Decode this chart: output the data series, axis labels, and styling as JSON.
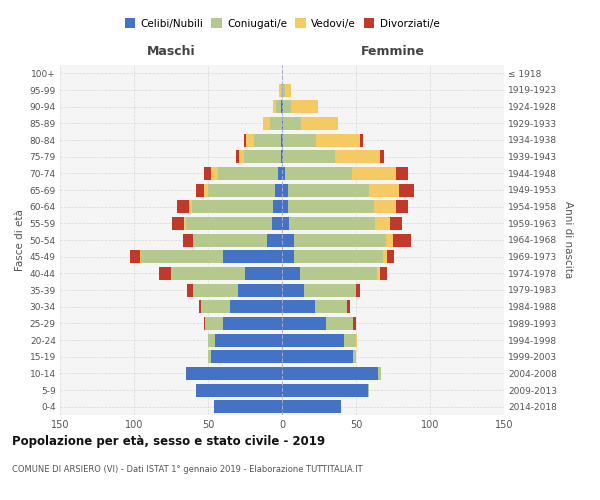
{
  "age_groups": [
    "0-4",
    "5-9",
    "10-14",
    "15-19",
    "20-24",
    "25-29",
    "30-34",
    "35-39",
    "40-44",
    "45-49",
    "50-54",
    "55-59",
    "60-64",
    "65-69",
    "70-74",
    "75-79",
    "80-84",
    "85-89",
    "90-94",
    "95-99",
    "100+"
  ],
  "birth_years": [
    "2014-2018",
    "2009-2013",
    "2004-2008",
    "1999-2003",
    "1994-1998",
    "1989-1993",
    "1984-1988",
    "1979-1983",
    "1974-1978",
    "1969-1973",
    "1964-1968",
    "1959-1963",
    "1954-1958",
    "1949-1953",
    "1944-1948",
    "1939-1943",
    "1934-1938",
    "1929-1933",
    "1924-1928",
    "1919-1923",
    "≤ 1918"
  ],
  "male": {
    "celibi": [
      46,
      58,
      65,
      48,
      45,
      40,
      35,
      30,
      25,
      40,
      10,
      7,
      6,
      5,
      3,
      1,
      1,
      0,
      1,
      0,
      0
    ],
    "coniugati": [
      0,
      0,
      0,
      2,
      5,
      12,
      20,
      30,
      50,
      55,
      50,
      58,
      55,
      45,
      40,
      25,
      18,
      8,
      3,
      1,
      0
    ],
    "vedovi": [
      0,
      0,
      0,
      0,
      0,
      0,
      0,
      0,
      0,
      1,
      0,
      1,
      2,
      3,
      5,
      3,
      5,
      5,
      2,
      1,
      0
    ],
    "divorziati": [
      0,
      0,
      0,
      0,
      0,
      1,
      1,
      4,
      8,
      7,
      7,
      8,
      8,
      5,
      5,
      2,
      2,
      0,
      0,
      0,
      0
    ]
  },
  "female": {
    "nubili": [
      40,
      58,
      65,
      48,
      42,
      30,
      22,
      15,
      12,
      8,
      8,
      5,
      4,
      4,
      2,
      1,
      1,
      1,
      1,
      0,
      0
    ],
    "coniugate": [
      0,
      1,
      2,
      2,
      8,
      18,
      22,
      35,
      52,
      60,
      62,
      58,
      58,
      55,
      45,
      35,
      22,
      12,
      5,
      2,
      0
    ],
    "vedove": [
      0,
      0,
      0,
      0,
      1,
      0,
      0,
      0,
      2,
      3,
      5,
      10,
      15,
      20,
      30,
      30,
      30,
      25,
      18,
      4,
      0
    ],
    "divorziate": [
      0,
      0,
      0,
      0,
      0,
      2,
      2,
      3,
      5,
      5,
      12,
      8,
      8,
      10,
      8,
      3,
      2,
      0,
      0,
      0,
      0
    ]
  },
  "colors": {
    "celibi": "#4472c4",
    "coniugati": "#b5c98e",
    "vedovi": "#f5c963",
    "divorziati": "#c0392b"
  },
  "title": "Popolazione per età, sesso e stato civile - 2019",
  "subtitle": "COMUNE DI ARSIERO (VI) - Dati ISTAT 1° gennaio 2019 - Elaborazione TUTTITALIA.IT",
  "xlim": 150,
  "background_color": "#f5f5f5",
  "grid_color": "#cccccc"
}
